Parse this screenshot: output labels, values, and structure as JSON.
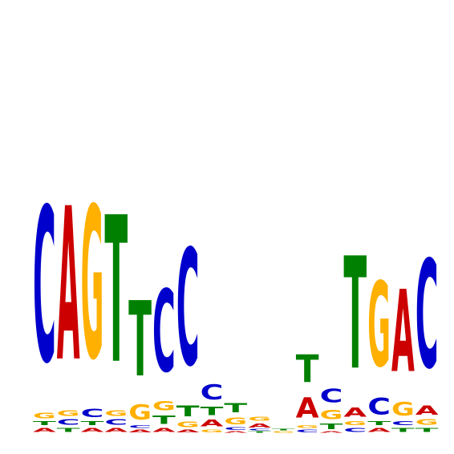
{
  "chart_data": {
    "type": "sequence-logo",
    "title": "",
    "xlabel": "",
    "ylabel": "",
    "axes_visible": false,
    "grid": false,
    "ylim": [
      0,
      2
    ],
    "alphabet": [
      "A",
      "C",
      "G",
      "T"
    ],
    "colors": {
      "A": "#cc0000",
      "C": "#0000cc",
      "G": "#ffb000",
      "T": "#008000"
    },
    "positions": [
      {
        "stack": [
          {
            "base": "A",
            "height": 0.03
          },
          {
            "base": "T",
            "height": 0.03
          },
          {
            "base": "G",
            "height": 0.04
          },
          {
            "base": "C",
            "height": 1.13
          }
        ]
      },
      {
        "stack": [
          {
            "base": "T",
            "height": 0.03
          },
          {
            "base": "C",
            "height": 0.04
          },
          {
            "base": "G",
            "height": 0.04
          },
          {
            "base": "A",
            "height": 1.12
          }
        ]
      },
      {
        "stack": [
          {
            "base": "A",
            "height": 0.03
          },
          {
            "base": "T",
            "height": 0.03
          },
          {
            "base": "C",
            "height": 0.06
          },
          {
            "base": "G",
            "height": 1.11
          }
        ]
      },
      {
        "stack": [
          {
            "base": "A",
            "height": 0.03
          },
          {
            "base": "C",
            "height": 0.04
          },
          {
            "base": "G",
            "height": 0.04
          },
          {
            "base": "T",
            "height": 1.07
          }
        ]
      },
      {
        "stack": [
          {
            "base": "A",
            "height": 0.02
          },
          {
            "base": "C",
            "height": 0.02
          },
          {
            "base": "G",
            "height": 0.11
          },
          {
            "base": "T",
            "height": 0.55
          }
        ]
      },
      {
        "stack": [
          {
            "base": "A",
            "height": 0.03
          },
          {
            "base": "T",
            "height": 0.06
          },
          {
            "base": "G",
            "height": 0.07
          },
          {
            "base": "C",
            "height": 0.6
          }
        ]
      },
      {
        "stack": [
          {
            "base": "A",
            "height": 0.02
          },
          {
            "base": "G",
            "height": 0.04
          },
          {
            "base": "T",
            "height": 0.08
          },
          {
            "base": "C",
            "height": 0.85
          }
        ]
      },
      {
        "stack": [
          {
            "base": "G",
            "height": 0.02
          },
          {
            "base": "A",
            "height": 0.05
          },
          {
            "base": "T",
            "height": 0.06
          },
          {
            "base": "C",
            "height": 0.11
          }
        ]
      },
      {
        "stack": [
          {
            "base": "A",
            "height": 0.01
          },
          {
            "base": "C",
            "height": 0.02
          },
          {
            "base": "G",
            "height": 0.05
          },
          {
            "base": "T",
            "height": 0.07
          }
        ]
      },
      {
        "stack": [
          {
            "base": "T",
            "height": 0.01
          },
          {
            "base": "C",
            "height": 0.01
          },
          {
            "base": "A",
            "height": 0.03
          },
          {
            "base": "G",
            "height": 0.03
          }
        ]
      },
      {
        "stack": [
          {
            "base": "G",
            "height": 0.01
          },
          {
            "base": "T",
            "height": 0.01
          }
        ]
      },
      {
        "stack": [
          {
            "base": "C",
            "height": 0.02
          },
          {
            "base": "G",
            "height": 0.02
          },
          {
            "base": "A",
            "height": 0.15
          },
          {
            "base": "T",
            "height": 0.2
          }
        ]
      },
      {
        "stack": [
          {
            "base": "A",
            "height": 0.01
          },
          {
            "base": "T",
            "height": 0.04
          },
          {
            "base": "G",
            "height": 0.07
          },
          {
            "base": "C",
            "height": 0.1
          }
        ]
      },
      {
        "stack": [
          {
            "base": "C",
            "height": 0.03
          },
          {
            "base": "G",
            "height": 0.03
          },
          {
            "base": "A",
            "height": 0.07
          },
          {
            "base": "T",
            "height": 0.82
          }
        ]
      },
      {
        "stack": [
          {
            "base": "A",
            "height": 0.03
          },
          {
            "base": "T",
            "height": 0.03
          },
          {
            "base": "C",
            "height": 0.12
          },
          {
            "base": "G",
            "height": 0.62
          }
        ]
      },
      {
        "stack": [
          {
            "base": "T",
            "height": 0.03
          },
          {
            "base": "C",
            "height": 0.03
          },
          {
            "base": "G",
            "height": 0.1
          },
          {
            "base": "A",
            "height": 0.6
          }
        ]
      },
      {
        "stack": [
          {
            "base": "T",
            "height": 0.03
          },
          {
            "base": "G",
            "height": 0.04
          },
          {
            "base": "A",
            "height": 0.07
          },
          {
            "base": "C",
            "height": 0.79
          }
        ]
      }
    ]
  }
}
